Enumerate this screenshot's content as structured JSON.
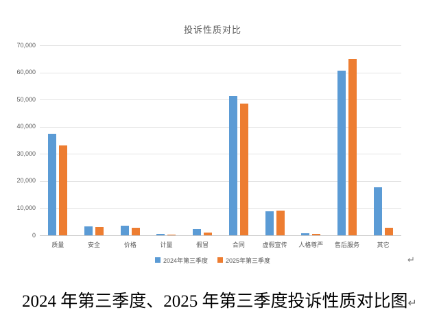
{
  "chart": {
    "title": "投诉性质对比",
    "legend": [
      {
        "label": "2024年第三季度",
        "color": "#5B9BD5"
      },
      {
        "label": "2025年第三季度",
        "color": "#ED7D31"
      }
    ]
  },
  "chart_data": {
    "type": "bar",
    "title": "投诉性质对比",
    "categories": [
      "质量",
      "安全",
      "价格",
      "计量",
      "假冒",
      "合同",
      "虚假宣传",
      "人格尊严",
      "售后服务",
      "其它"
    ],
    "series": [
      {
        "name": "2024年第三季度",
        "color": "#5B9BD5",
        "values": [
          37500,
          3200,
          3600,
          600,
          2200,
          51200,
          8900,
          700,
          60700,
          17700
        ]
      },
      {
        "name": "2025年第三季度",
        "color": "#ED7D31",
        "values": [
          33200,
          3100,
          2700,
          350,
          1100,
          48400,
          9200,
          550,
          64900,
          2900
        ]
      }
    ],
    "xlabel": "",
    "ylabel": "",
    "ylim": [
      0,
      70000
    ],
    "ytick_interval": 10000,
    "ytick_labels": [
      "0",
      "10,000",
      "20,000",
      "30,000",
      "40,000",
      "50,000",
      "60,000",
      "70,000"
    ],
    "grid": true,
    "legend_position": "bottom"
  },
  "marks": {
    "paragraph_return": "↵"
  },
  "caption": {
    "text": "2024 年第三季度、2025 年第三季度投诉性质对比图"
  }
}
